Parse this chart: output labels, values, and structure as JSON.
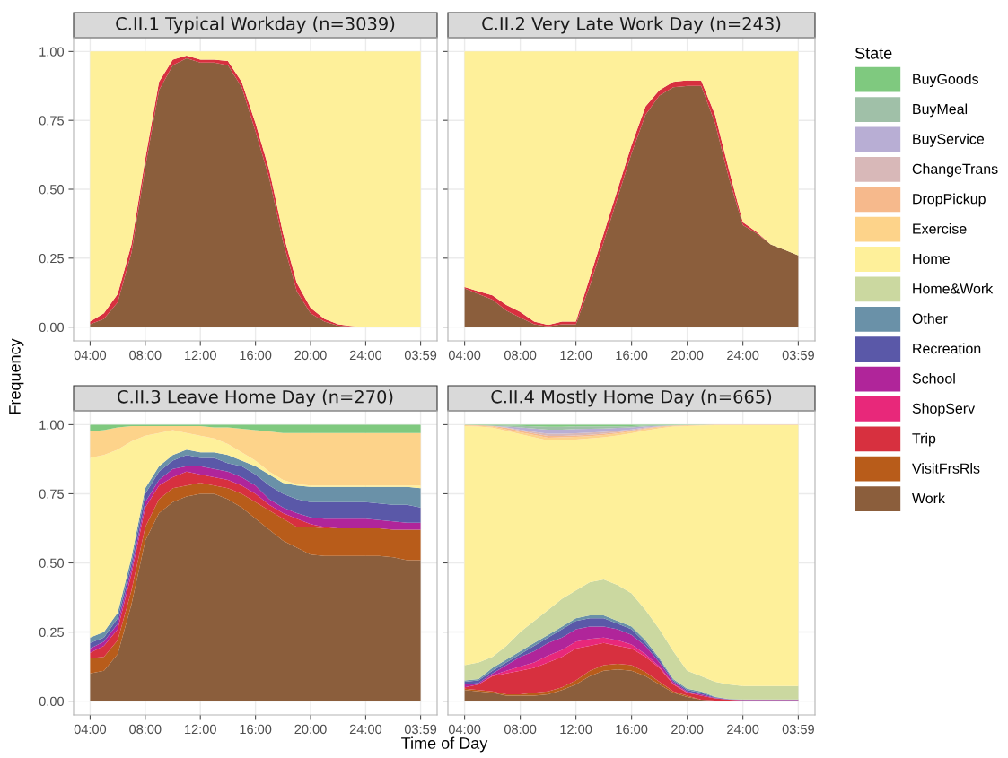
{
  "chart_data": [
    {
      "type": "area",
      "stacked": true,
      "title": "C.II.1 Typical Workday (n=3039)",
      "xlabel": "Time of Day",
      "ylabel": "Frequency",
      "legend_title": "State",
      "legend": "right",
      "grid": true,
      "x": [
        "2000-01-01T04:00",
        "2000-01-01T05:00",
        "2000-01-01T06:00",
        "2000-01-01T07:00",
        "2000-01-01T08:00",
        "2000-01-01T09:00",
        "2000-01-01T10:00",
        "2000-01-01T11:00",
        "2000-01-01T12:00",
        "2000-01-01T13:00",
        "2000-01-01T14:00",
        "2000-01-01T15:00",
        "2000-01-01T16:00",
        "2000-01-01T17:00",
        "2000-01-01T18:00",
        "2000-01-01T19:00",
        "2000-01-01T20:00",
        "2000-01-01T21:00",
        "2000-01-01T22:00",
        "2000-01-01T23:00",
        "2000-01-02T00:00",
        "2000-01-02T01:00",
        "2000-01-02T02:00",
        "2000-01-02T03:00",
        "2000-01-02T03:59"
      ],
      "xlim": [
        "2000-01-01T02:48",
        "2000-01-02T05:11"
      ],
      "ylim": [
        -0.05,
        1.05
      ],
      "xticks": [
        {
          "value": "2000-01-01T04:00",
          "label": "04:00"
        },
        {
          "value": "2000-01-01T08:00",
          "label": "08:00"
        },
        {
          "value": "2000-01-01T12:00",
          "label": "12:00"
        },
        {
          "value": "2000-01-01T16:00",
          "label": "16:00"
        },
        {
          "value": "2000-01-01T20:00",
          "label": "20:00"
        },
        {
          "value": "2000-01-02T00:00",
          "label": "24:00"
        },
        {
          "value": "2000-01-02T03:59",
          "label": "03:59"
        }
      ],
      "yticks": [
        {
          "value": 0,
          "label": "0.00"
        },
        {
          "value": 0.25,
          "label": "0.25"
        },
        {
          "value": 0.5,
          "label": "0.50"
        },
        {
          "value": 0.75,
          "label": "0.75"
        },
        {
          "value": 1,
          "label": "1.00"
        }
      ],
      "series": [
        {
          "name": "Work",
          "color": "#8b5e3c",
          "values": [
            0.01,
            0.03,
            0.09,
            0.27,
            0.58,
            0.86,
            0.95,
            0.975,
            0.96,
            0.96,
            0.95,
            0.87,
            0.71,
            0.54,
            0.31,
            0.13,
            0.05,
            0.02,
            0.005,
            0.002,
            0,
            0,
            0,
            0,
            0
          ]
        },
        {
          "name": "Trip",
          "color": "#d7303f",
          "values": [
            0.01,
            0.02,
            0.03,
            0.03,
            0.03,
            0.03,
            0.02,
            0.01,
            0.01,
            0.01,
            0.015,
            0.02,
            0.03,
            0.03,
            0.03,
            0.03,
            0.02,
            0.01,
            0.005,
            0.002,
            0,
            0,
            0,
            0,
            0
          ]
        },
        {
          "name": "Home",
          "color": "#fef09a",
          "values": [
            0.98,
            0.95,
            0.88,
            0.7,
            0.39,
            0.11,
            0.03,
            0.015,
            0.03,
            0.03,
            0.035,
            0.11,
            0.26,
            0.43,
            0.66,
            0.84,
            0.93,
            0.97,
            0.99,
            0.996,
            1,
            1,
            1,
            1,
            1
          ]
        }
      ]
    },
    {
      "type": "area",
      "stacked": true,
      "title": "C.II.2 Very Late Work Day (n=243)",
      "grid": true,
      "tick_labels": "x",
      "legend": "right",
      "x": [
        "2000-01-01T04:00",
        "2000-01-01T05:00",
        "2000-01-01T06:00",
        "2000-01-01T07:00",
        "2000-01-01T08:00",
        "2000-01-01T09:00",
        "2000-01-01T10:00",
        "2000-01-01T11:00",
        "2000-01-01T12:00",
        "2000-01-01T13:00",
        "2000-01-01T14:00",
        "2000-01-01T15:00",
        "2000-01-01T16:00",
        "2000-01-01T17:00",
        "2000-01-01T18:00",
        "2000-01-01T19:00",
        "2000-01-01T20:00",
        "2000-01-01T21:00",
        "2000-01-01T22:00",
        "2000-01-01T23:00",
        "2000-01-02T00:00",
        "2000-01-02T01:00",
        "2000-01-02T02:00",
        "2000-01-02T03:00",
        "2000-01-02T03:59"
      ],
      "xlim": [
        "2000-01-01T02:48",
        "2000-01-02T05:11"
      ],
      "ylim": [
        -0.05,
        1.05
      ],
      "xticks": [
        {
          "value": "2000-01-01T04:00",
          "label": "04:00"
        },
        {
          "value": "2000-01-01T08:00",
          "label": "08:00"
        },
        {
          "value": "2000-01-01T12:00",
          "label": "12:00"
        },
        {
          "value": "2000-01-01T16:00",
          "label": "16:00"
        },
        {
          "value": "2000-01-01T20:00",
          "label": "20:00"
        },
        {
          "value": "2000-01-02T00:00",
          "label": "24:00"
        },
        {
          "value": "2000-01-02T03:59",
          "label": "03:59"
        }
      ],
      "yticks": [
        {
          "value": 0,
          "label": "0.00"
        },
        {
          "value": 0.25,
          "label": "0.25"
        },
        {
          "value": 0.5,
          "label": "0.50"
        },
        {
          "value": 0.75,
          "label": "0.75"
        },
        {
          "value": 1,
          "label": "1.00"
        }
      ],
      "series": [
        {
          "name": "Work",
          "color": "#8b5e3c",
          "values": [
            0.14,
            0.12,
            0.1,
            0.06,
            0.035,
            0.01,
            0.003,
            0.01,
            0.01,
            0.15,
            0.31,
            0.47,
            0.63,
            0.77,
            0.84,
            0.87,
            0.875,
            0.875,
            0.74,
            0.54,
            0.37,
            0.34,
            0.3,
            0.28,
            0.26
          ]
        },
        {
          "name": "Trip",
          "color": "#d7303f",
          "values": [
            0.005,
            0.01,
            0.015,
            0.02,
            0.02,
            0.01,
            0.005,
            0.01,
            0.01,
            0.03,
            0.03,
            0.03,
            0.03,
            0.03,
            0.02,
            0.02,
            0.02,
            0.02,
            0.03,
            0.03,
            0.01,
            0.005,
            0,
            0,
            0
          ]
        },
        {
          "name": "Home",
          "color": "#fef09a",
          "values": [
            0.855,
            0.87,
            0.885,
            0.92,
            0.945,
            0.98,
            0.992,
            0.98,
            0.98,
            0.82,
            0.66,
            0.5,
            0.34,
            0.2,
            0.14,
            0.11,
            0.105,
            0.105,
            0.23,
            0.43,
            0.62,
            0.655,
            0.7,
            0.72,
            0.74
          ]
        }
      ]
    },
    {
      "type": "area",
      "stacked": true,
      "title": "C.II.3 Leave Home Day (n=270)",
      "grid": true,
      "legend": "right",
      "x": [
        "2000-01-01T04:00",
        "2000-01-01T05:00",
        "2000-01-01T06:00",
        "2000-01-01T07:00",
        "2000-01-01T08:00",
        "2000-01-01T09:00",
        "2000-01-01T10:00",
        "2000-01-01T11:00",
        "2000-01-01T12:00",
        "2000-01-01T13:00",
        "2000-01-01T14:00",
        "2000-01-01T15:00",
        "2000-01-01T16:00",
        "2000-01-01T17:00",
        "2000-01-01T18:00",
        "2000-01-01T19:00",
        "2000-01-01T20:00",
        "2000-01-01T21:00",
        "2000-01-01T22:00",
        "2000-01-01T23:00",
        "2000-01-02T00:00",
        "2000-01-02T01:00",
        "2000-01-02T02:00",
        "2000-01-02T03:00",
        "2000-01-02T03:59"
      ],
      "xlim": [
        "2000-01-01T02:48",
        "2000-01-02T05:11"
      ],
      "ylim": [
        -0.05,
        1.05
      ],
      "xticks": [
        {
          "value": "2000-01-01T04:00",
          "label": "04:00"
        },
        {
          "value": "2000-01-01T08:00",
          "label": "08:00"
        },
        {
          "value": "2000-01-01T12:00",
          "label": "12:00"
        },
        {
          "value": "2000-01-01T16:00",
          "label": "16:00"
        },
        {
          "value": "2000-01-01T20:00",
          "label": "20:00"
        },
        {
          "value": "2000-01-02T00:00",
          "label": "24:00"
        },
        {
          "value": "2000-01-02T03:59",
          "label": "03:59"
        }
      ],
      "yticks": [
        {
          "value": 0,
          "label": "0.00"
        },
        {
          "value": 0.25,
          "label": "0.25"
        },
        {
          "value": 0.5,
          "label": "0.50"
        },
        {
          "value": 0.75,
          "label": "0.75"
        },
        {
          "value": 1,
          "label": "1.00"
        }
      ],
      "series": [
        {
          "name": "Work",
          "color": "#8b5e3c",
          "values": [
            0.1,
            0.11,
            0.17,
            0.35,
            0.58,
            0.68,
            0.72,
            0.74,
            0.75,
            0.75,
            0.73,
            0.7,
            0.66,
            0.62,
            0.58,
            0.555,
            0.53,
            0.525,
            0.525,
            0.525,
            0.525,
            0.525,
            0.52,
            0.51,
            0.51
          ]
        },
        {
          "name": "VisitFrsRls",
          "color": "#b85c1a",
          "values": [
            0.055,
            0.05,
            0.05,
            0.05,
            0.05,
            0.05,
            0.05,
            0.04,
            0.04,
            0.03,
            0.04,
            0.05,
            0.06,
            0.07,
            0.08,
            0.075,
            0.1,
            0.1,
            0.1,
            0.1,
            0.1,
            0.1,
            0.1,
            0.11,
            0.11
          ]
        },
        {
          "name": "Trip",
          "color": "#d7303f",
          "values": [
            0.02,
            0.04,
            0.04,
            0.06,
            0.07,
            0.05,
            0.04,
            0.05,
            0.03,
            0.03,
            0.03,
            0.03,
            0.03,
            0.02,
            0.02,
            0.03,
            0.01,
            0.005,
            0,
            0,
            0,
            0,
            0,
            0,
            0
          ]
        },
        {
          "name": "School",
          "color": "#b0259a",
          "values": [
            0.015,
            0.015,
            0.02,
            0.02,
            0.02,
            0.02,
            0.03,
            0.02,
            0.03,
            0.03,
            0.03,
            0.03,
            0.03,
            0.02,
            0.02,
            0.02,
            0.025,
            0.03,
            0.035,
            0.035,
            0.035,
            0.03,
            0.03,
            0.025,
            0.025
          ]
        },
        {
          "name": "Recreation",
          "color": "#5a58a8",
          "values": [
            0.02,
            0.015,
            0.02,
            0.02,
            0.03,
            0.03,
            0.03,
            0.04,
            0.03,
            0.04,
            0.03,
            0.04,
            0.04,
            0.05,
            0.05,
            0.05,
            0.055,
            0.06,
            0.06,
            0.06,
            0.06,
            0.06,
            0.06,
            0.065,
            0.055
          ]
        },
        {
          "name": "Other",
          "color": "#6a91a8",
          "values": [
            0.02,
            0.02,
            0.02,
            0.02,
            0.02,
            0.02,
            0.02,
            0.02,
            0.02,
            0.02,
            0.03,
            0.02,
            0.03,
            0.04,
            0.04,
            0.05,
            0.055,
            0.055,
            0.055,
            0.055,
            0.055,
            0.06,
            0.065,
            0.065,
            0.07
          ]
        },
        {
          "name": "Home",
          "color": "#fef09a",
          "values": [
            0.65,
            0.64,
            0.59,
            0.42,
            0.19,
            0.12,
            0.09,
            0.06,
            0.06,
            0.05,
            0.04,
            0.03,
            0.02,
            0.01,
            0.01,
            0.005,
            0.005,
            0.005,
            0.005,
            0.005,
            0.005,
            0.005,
            0.005,
            0.005,
            0.01
          ]
        },
        {
          "name": "Exercise",
          "color": "#fdd38a",
          "values": [
            0.095,
            0.09,
            0.08,
            0.055,
            0.035,
            0.025,
            0.015,
            0.025,
            0.035,
            0.04,
            0.06,
            0.085,
            0.11,
            0.145,
            0.17,
            0.185,
            0.19,
            0.19,
            0.19,
            0.19,
            0.19,
            0.19,
            0.19,
            0.19,
            0.19
          ]
        },
        {
          "name": "BuyGoods",
          "color": "#7fc97f",
          "values": [
            0.025,
            0.02,
            0.01,
            0.005,
            0.005,
            0.005,
            0.005,
            0.005,
            0.005,
            0.01,
            0.01,
            0.015,
            0.02,
            0.025,
            0.03,
            0.03,
            0.03,
            0.03,
            0.03,
            0.03,
            0.03,
            0.03,
            0.03,
            0.03,
            0.03
          ]
        }
      ]
    },
    {
      "type": "area",
      "stacked": true,
      "title": "C.II.4 Mostly Home Day (n=665)",
      "grid": true,
      "tick_labels": "x",
      "legend": "right",
      "x": [
        "2000-01-01T04:00",
        "2000-01-01T05:00",
        "2000-01-01T06:00",
        "2000-01-01T07:00",
        "2000-01-01T08:00",
        "2000-01-01T09:00",
        "2000-01-01T10:00",
        "2000-01-01T11:00",
        "2000-01-01T12:00",
        "2000-01-01T13:00",
        "2000-01-01T14:00",
        "2000-01-01T15:00",
        "2000-01-01T16:00",
        "2000-01-01T17:00",
        "2000-01-01T18:00",
        "2000-01-01T19:00",
        "2000-01-01T20:00",
        "2000-01-01T21:00",
        "2000-01-01T22:00",
        "2000-01-01T23:00",
        "2000-01-02T00:00",
        "2000-01-02T01:00",
        "2000-01-02T02:00",
        "2000-01-02T03:00",
        "2000-01-02T03:59"
      ],
      "xlim": [
        "2000-01-01T02:48",
        "2000-01-02T05:11"
      ],
      "ylim": [
        -0.05,
        1.05
      ],
      "xticks": [
        {
          "value": "2000-01-01T04:00",
          "label": "04:00"
        },
        {
          "value": "2000-01-01T08:00",
          "label": "08:00"
        },
        {
          "value": "2000-01-01T12:00",
          "label": "12:00"
        },
        {
          "value": "2000-01-01T16:00",
          "label": "16:00"
        },
        {
          "value": "2000-01-01T20:00",
          "label": "20:00"
        },
        {
          "value": "2000-01-02T00:00",
          "label": "24:00"
        },
        {
          "value": "2000-01-02T03:59",
          "label": "03:59"
        }
      ],
      "yticks": [
        {
          "value": 0,
          "label": "0.00"
        },
        {
          "value": 0.25,
          "label": "0.25"
        },
        {
          "value": 0.5,
          "label": "0.50"
        },
        {
          "value": 0.75,
          "label": "0.75"
        },
        {
          "value": 1,
          "label": "1.00"
        }
      ],
      "series": [
        {
          "name": "Work",
          "color": "#8b5e3c",
          "values": [
            0.04,
            0.035,
            0.03,
            0.02,
            0.02,
            0.02,
            0.025,
            0.04,
            0.06,
            0.09,
            0.11,
            0.115,
            0.11,
            0.09,
            0.06,
            0.03,
            0.015,
            0.005,
            0.002,
            0,
            0,
            0,
            0,
            0,
            0
          ]
        },
        {
          "name": "VisitFrsRls",
          "color": "#b85c1a",
          "values": [
            0.005,
            0.005,
            0.005,
            0.005,
            0.005,
            0.01,
            0.01,
            0.01,
            0.015,
            0.02,
            0.02,
            0.02,
            0.02,
            0.015,
            0.01,
            0.005,
            0.005,
            0,
            0,
            0,
            0,
            0,
            0,
            0,
            0
          ]
        },
        {
          "name": "Trip",
          "color": "#d7303f",
          "values": [
            0.005,
            0.02,
            0.055,
            0.075,
            0.085,
            0.09,
            0.105,
            0.11,
            0.115,
            0.09,
            0.08,
            0.065,
            0.06,
            0.055,
            0.05,
            0.025,
            0.01,
            0.015,
            0.008,
            0.005,
            0.003,
            0.003,
            0.003,
            0.003,
            0.003
          ]
        },
        {
          "name": "ShopServ",
          "color": "#e8287a",
          "values": [
            0,
            0,
            0.003,
            0.01,
            0.015,
            0.02,
            0.025,
            0.025,
            0.025,
            0.025,
            0.02,
            0.02,
            0.015,
            0.01,
            0.005,
            0.003,
            0.002,
            0,
            0,
            0,
            0,
            0,
            0,
            0,
            0
          ]
        },
        {
          "name": "School",
          "color": "#b0259a",
          "values": [
            0.01,
            0.005,
            0.007,
            0.02,
            0.035,
            0.04,
            0.045,
            0.045,
            0.045,
            0.045,
            0.04,
            0.04,
            0.035,
            0.03,
            0.015,
            0.007,
            0.003,
            0.005,
            0.002,
            0.001,
            0.001,
            0.001,
            0.001,
            0.001,
            0.001
          ]
        },
        {
          "name": "Recreation",
          "color": "#5a58a8",
          "values": [
            0.01,
            0.01,
            0.01,
            0.01,
            0.01,
            0.02,
            0.02,
            0.03,
            0.03,
            0.03,
            0.03,
            0.02,
            0.02,
            0.01,
            0.01,
            0.005,
            0.005,
            0.005,
            0.002,
            0.001,
            0.001,
            0.001,
            0.001,
            0.001,
            0.001
          ]
        },
        {
          "name": "Other",
          "color": "#6a91a8",
          "values": [
            0.005,
            0.005,
            0.01,
            0.01,
            0.01,
            0.01,
            0.01,
            0.01,
            0.01,
            0.01,
            0.01,
            0.01,
            0.01,
            0.01,
            0.005,
            0.005,
            0.005,
            0.005,
            0.002,
            0.001,
            0.001,
            0.001,
            0.001,
            0.001,
            0.001
          ]
        },
        {
          "name": "Home&Work",
          "color": "#cbd8a0",
          "values": [
            0.055,
            0.06,
            0.04,
            0.05,
            0.07,
            0.08,
            0.09,
            0.1,
            0.1,
            0.12,
            0.13,
            0.13,
            0.12,
            0.11,
            0.105,
            0.1,
            0.065,
            0.055,
            0.054,
            0.052,
            0.049,
            0.049,
            0.049,
            0.049,
            0.049
          ]
        },
        {
          "name": "Home",
          "color": "#fef09a",
          "values": [
            0.865,
            0.853,
            0.829,
            0.778,
            0.716,
            0.664,
            0.613,
            0.574,
            0.546,
            0.52,
            0.514,
            0.541,
            0.579,
            0.649,
            0.727,
            0.813,
            0.885,
            0.907,
            0.928,
            0.938,
            0.943,
            0.943,
            0.943,
            0.943,
            0.943
          ]
        },
        {
          "name": "Exercise",
          "color": "#fdd38a",
          "values": [
            0.003,
            0.003,
            0.004,
            0.005,
            0.006,
            0.008,
            0.01,
            0.01,
            0.01,
            0.008,
            0.008,
            0.007,
            0.006,
            0.005,
            0.004,
            0.003,
            0.002,
            0.001,
            0.001,
            0.001,
            0.001,
            0.001,
            0.001,
            0.001,
            0.001
          ]
        },
        {
          "name": "DropPickup",
          "color": "#f6b98c",
          "values": [
            0.001,
            0.002,
            0.003,
            0.005,
            0.006,
            0.006,
            0.006,
            0.005,
            0.005,
            0.005,
            0.005,
            0.004,
            0.004,
            0.003,
            0.002,
            0.001,
            0.001,
            0.001,
            0.001,
            0.001,
            0.001,
            0.001,
            0.001,
            0.001,
            0.001
          ]
        },
        {
          "name": "ChangeTrans",
          "color": "#d8b8b8",
          "values": [
            0,
            0,
            0,
            0.002,
            0.004,
            0.006,
            0.008,
            0.008,
            0.008,
            0.008,
            0.007,
            0.006,
            0.004,
            0.003,
            0.001,
            0,
            0,
            0,
            0,
            0,
            0,
            0,
            0,
            0,
            0
          ]
        },
        {
          "name": "BuyService",
          "color": "#b8aed4",
          "values": [
            0,
            0,
            0,
            0.003,
            0.008,
            0.012,
            0.015,
            0.015,
            0.015,
            0.014,
            0.012,
            0.01,
            0.007,
            0.004,
            0.002,
            0,
            0,
            0,
            0,
            0,
            0,
            0,
            0,
            0,
            0
          ]
        },
        {
          "name": "BuyMeal",
          "color": "#a0c0a8",
          "values": [
            0,
            0,
            0.002,
            0.004,
            0.006,
            0.008,
            0.01,
            0.01,
            0.01,
            0.009,
            0.008,
            0.006,
            0.005,
            0.003,
            0.002,
            0.001,
            0.001,
            0,
            0,
            0,
            0,
            0,
            0,
            0,
            0
          ]
        },
        {
          "name": "BuyGoods",
          "color": "#7fc97f",
          "values": [
            0.001,
            0.002,
            0.002,
            0.003,
            0.004,
            0.006,
            0.008,
            0.008,
            0.006,
            0.006,
            0.006,
            0.006,
            0.005,
            0.003,
            0.002,
            0.002,
            0.001,
            0.001,
            0,
            0,
            0,
            0,
            0,
            0,
            0
          ]
        }
      ]
    }
  ]
}
